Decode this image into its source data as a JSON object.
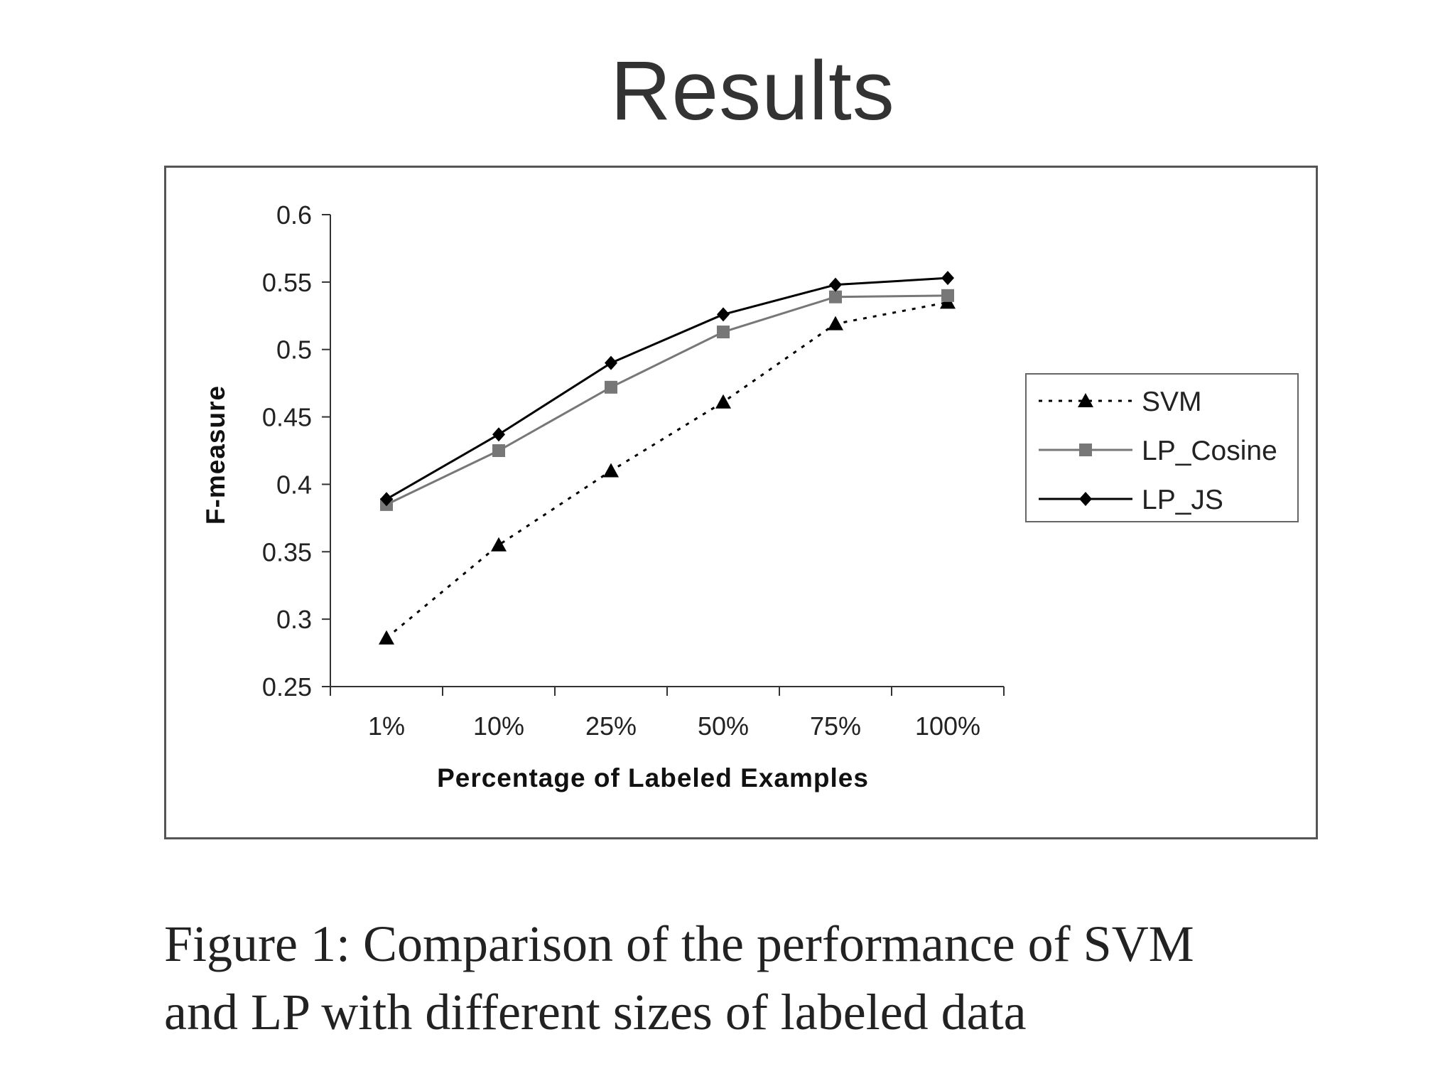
{
  "slide": {
    "title": "Results"
  },
  "chart_data": {
    "type": "line",
    "title": "",
    "xlabel": "Percentage of Labeled Examples",
    "ylabel": "F-measure",
    "categories": [
      "1%",
      "10%",
      "25%",
      "50%",
      "75%",
      "100%"
    ],
    "ylim": [
      0.25,
      0.6
    ],
    "yticks": [
      "0.6",
      "0.55",
      "0.5",
      "0.45",
      "0.4",
      "0.35",
      "0.3",
      "0.25"
    ],
    "grid": false,
    "legend_position": "right",
    "series": [
      {
        "name": "SVM",
        "values": [
          0.286,
          0.355,
          0.41,
          0.461,
          0.519,
          0.535
        ],
        "color": "#000000",
        "marker": "triangle",
        "dashed": true
      },
      {
        "name": "LP_Cosine",
        "values": [
          0.385,
          0.425,
          0.472,
          0.513,
          0.539,
          0.54
        ],
        "color": "#777777",
        "marker": "square",
        "dashed": false
      },
      {
        "name": "LP_JS",
        "values": [
          0.389,
          0.437,
          0.49,
          0.526,
          0.548,
          0.553
        ],
        "color": "#000000",
        "marker": "diamond",
        "dashed": false
      }
    ]
  },
  "caption": {
    "line1": "Figure 1: Comparison of the performance of SVM",
    "line2": "and LP with different sizes of labeled data"
  }
}
